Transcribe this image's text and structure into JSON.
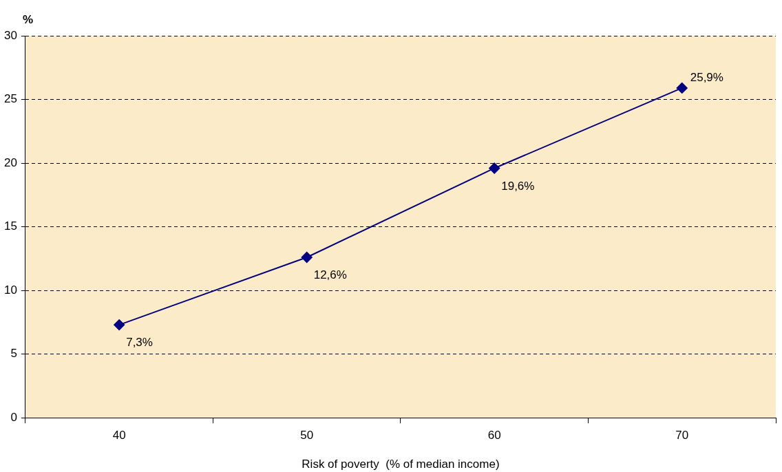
{
  "chart_data": {
    "type": "line",
    "ylabel": "%",
    "xlabel": "Risk of poverty  (% of median income)",
    "categories": [
      "40",
      "50",
      "60",
      "70"
    ],
    "series": [
      {
        "color": "#000080",
        "values": [
          7.3,
          12.6,
          19.6,
          25.9
        ],
        "value_labels": [
          "7,3%",
          "12,6%",
          "19,6%",
          "25,9%"
        ]
      }
    ],
    "ylim": [
      0,
      30
    ],
    "yticks": [
      0,
      5,
      10,
      15,
      20,
      25,
      30
    ],
    "grid": "y",
    "legend": false,
    "marker": "diamond",
    "line_style": "solid"
  }
}
